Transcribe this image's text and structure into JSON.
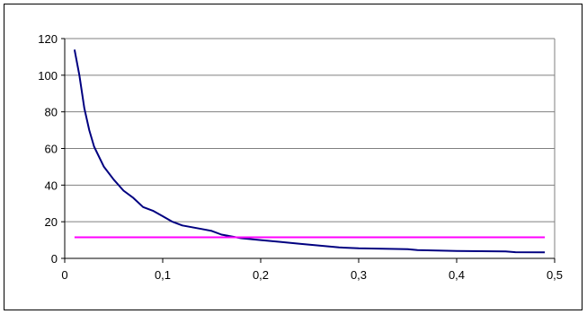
{
  "chart_data": {
    "type": "line",
    "title": "",
    "xlabel": "",
    "ylabel": "",
    "xlim": [
      0,
      0.5
    ],
    "ylim": [
      0,
      120
    ],
    "x_ticks": [
      {
        "value": 0,
        "label": "0"
      },
      {
        "value": 0.1,
        "label": "0,1"
      },
      {
        "value": 0.2,
        "label": "0,2"
      },
      {
        "value": 0.3,
        "label": "0,3"
      },
      {
        "value": 0.4,
        "label": "0,4"
      },
      {
        "value": 0.5,
        "label": "0,5"
      }
    ],
    "y_ticks": [
      {
        "value": 0,
        "label": "0"
      },
      {
        "value": 20,
        "label": "20"
      },
      {
        "value": 40,
        "label": "40"
      },
      {
        "value": 60,
        "label": "60"
      },
      {
        "value": 80,
        "label": "80"
      },
      {
        "value": 100,
        "label": "100"
      },
      {
        "value": 120,
        "label": "120"
      }
    ],
    "grid": "horizontal",
    "legend": "none",
    "series": [
      {
        "color": "#000080",
        "points": [
          [
            0.01,
            114
          ],
          [
            0.015,
            100
          ],
          [
            0.02,
            82
          ],
          [
            0.025,
            70
          ],
          [
            0.03,
            61
          ],
          [
            0.04,
            50
          ],
          [
            0.05,
            43
          ],
          [
            0.06,
            37
          ],
          [
            0.07,
            33
          ],
          [
            0.08,
            28
          ],
          [
            0.09,
            26
          ],
          [
            0.1,
            23
          ],
          [
            0.11,
            20
          ],
          [
            0.12,
            18
          ],
          [
            0.13,
            17
          ],
          [
            0.14,
            16
          ],
          [
            0.15,
            15
          ],
          [
            0.16,
            13
          ],
          [
            0.17,
            12
          ],
          [
            0.18,
            11
          ],
          [
            0.2,
            10
          ],
          [
            0.22,
            9
          ],
          [
            0.24,
            8
          ],
          [
            0.26,
            7
          ],
          [
            0.28,
            6
          ],
          [
            0.3,
            5.5
          ],
          [
            0.35,
            5
          ],
          [
            0.36,
            4.5
          ],
          [
            0.4,
            4
          ],
          [
            0.45,
            3.8
          ],
          [
            0.46,
            3.4
          ],
          [
            0.49,
            3.3
          ]
        ]
      },
      {
        "color": "#ff00ff",
        "points": [
          [
            0.01,
            11.5
          ],
          [
            0.49,
            11.5
          ]
        ]
      }
    ]
  }
}
